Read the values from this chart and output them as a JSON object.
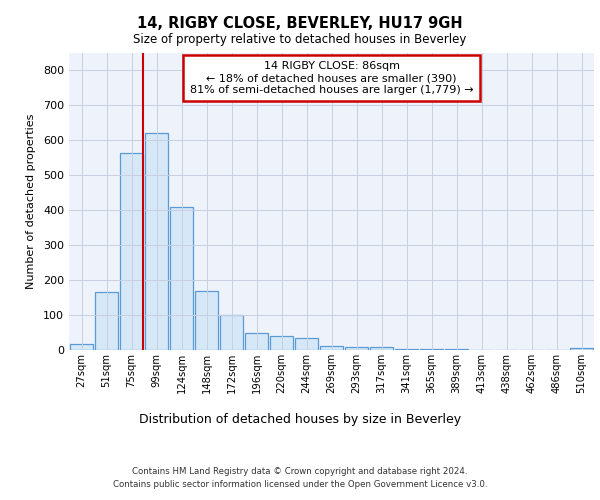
{
  "title_line1": "14, RIGBY CLOSE, BEVERLEY, HU17 9GH",
  "title_line2": "Size of property relative to detached houses in Beverley",
  "xlabel": "Distribution of detached houses by size in Beverley",
  "ylabel": "Number of detached properties",
  "categories": [
    "27sqm",
    "51sqm",
    "75sqm",
    "99sqm",
    "124sqm",
    "148sqm",
    "172sqm",
    "196sqm",
    "220sqm",
    "244sqm",
    "269sqm",
    "293sqm",
    "317sqm",
    "341sqm",
    "365sqm",
    "389sqm",
    "413sqm",
    "438sqm",
    "462sqm",
    "486sqm",
    "510sqm"
  ],
  "values": [
    18,
    165,
    563,
    620,
    410,
    170,
    100,
    50,
    40,
    33,
    12,
    10,
    8,
    4,
    3,
    2,
    1,
    0,
    0,
    0,
    5
  ],
  "bar_color": "#d6e8f7",
  "bar_edge_color": "#5b9bd5",
  "vline_color": "#cc0000",
  "vline_x": 2.46,
  "annotation_text": "14 RIGBY CLOSE: 86sqm\n← 18% of detached houses are smaller (390)\n81% of semi-detached houses are larger (1,779) →",
  "annotation_box_color": "#ffffff",
  "annotation_box_edge": "#cc0000",
  "ylim": [
    0,
    850
  ],
  "yticks": [
    0,
    100,
    200,
    300,
    400,
    500,
    600,
    700,
    800
  ],
  "footer_line1": "Contains HM Land Registry data © Crown copyright and database right 2024.",
  "footer_line2": "Contains public sector information licensed under the Open Government Licence v3.0.",
  "bg_color": "#ffffff",
  "plot_bg_color": "#eef2fb",
  "grid_color": "#c8cfe0"
}
